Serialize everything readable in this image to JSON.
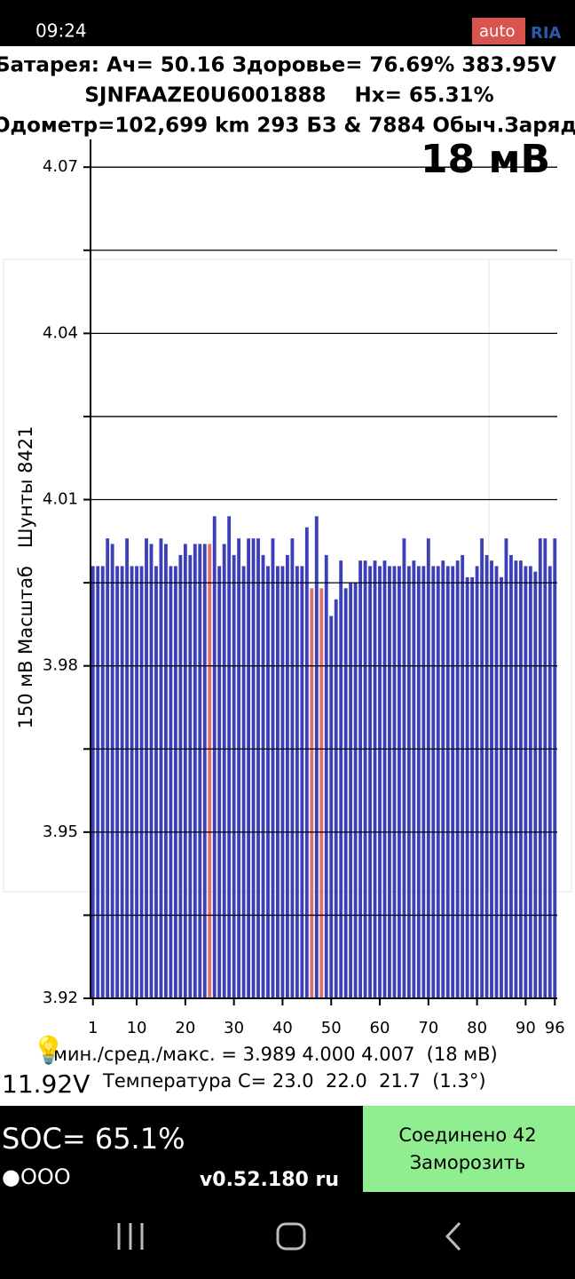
{
  "status_bar": {
    "time": "09:24",
    "watermark_1": "auto",
    "watermark_2": "RIA"
  },
  "header": {
    "line1": "Батарея: Ач= 50.16 Здоровье= 76.69% 383.95V",
    "line2": "SJNFAAZE0U6001888    Hx= 65.31%",
    "line3": "Одометр=102,699 km 293 БЗ & 7884 Обыч.Заряд"
  },
  "chart_data": {
    "type": "bar",
    "title": "18 мВ",
    "ylabel": "150 мВ Масштаб   Шунты 8421",
    "x": [
      1,
      2,
      3,
      4,
      5,
      6,
      7,
      8,
      9,
      10,
      11,
      12,
      13,
      14,
      15,
      16,
      17,
      18,
      19,
      20,
      21,
      22,
      23,
      24,
      25,
      26,
      27,
      28,
      29,
      30,
      31,
      32,
      33,
      34,
      35,
      36,
      37,
      38,
      39,
      40,
      41,
      42,
      43,
      44,
      45,
      46,
      47,
      48,
      49,
      50,
      51,
      52,
      53,
      54,
      55,
      56,
      57,
      58,
      59,
      60,
      61,
      62,
      63,
      64,
      65,
      66,
      67,
      68,
      69,
      70,
      71,
      72,
      73,
      74,
      75,
      76,
      77,
      78,
      79,
      80,
      81,
      82,
      83,
      84,
      85,
      86,
      87,
      88,
      89,
      90,
      91,
      92,
      93,
      94,
      95,
      96
    ],
    "values": [
      3.998,
      3.998,
      3.998,
      4.003,
      4.002,
      3.998,
      3.998,
      4.003,
      3.998,
      3.998,
      3.998,
      4.003,
      4.002,
      3.998,
      4.003,
      4.002,
      3.998,
      3.998,
      4.0,
      4.002,
      4.0,
      4.002,
      4.002,
      4.002,
      4.002,
      4.007,
      3.998,
      4.002,
      4.007,
      4.0,
      4.003,
      3.998,
      4.003,
      4.003,
      4.003,
      4.0,
      3.998,
      4.003,
      3.998,
      3.998,
      4.0,
      4.003,
      3.998,
      3.998,
      4.005,
      3.994,
      4.007,
      3.994,
      4.0,
      3.989,
      3.992,
      3.999,
      3.994,
      3.995,
      3.995,
      3.999,
      3.999,
      3.998,
      3.999,
      3.998,
      3.999,
      3.998,
      3.998,
      3.998,
      4.003,
      3.998,
      3.999,
      3.998,
      3.998,
      4.003,
      3.998,
      3.998,
      3.999,
      3.998,
      3.998,
      3.999,
      4.0,
      3.996,
      3.996,
      3.998,
      4.003,
      4.0,
      3.999,
      3.998,
      3.996,
      4.003,
      4.0,
      3.999,
      3.999,
      3.998,
      3.998,
      3.997,
      4.003,
      4.003,
      3.998,
      4.003
    ],
    "color": "#3b3fb8",
    "highlight": {
      "color": "#e07070",
      "x": [
        25,
        46,
        48
      ]
    },
    "xlim": [
      0.5,
      96.5
    ],
    "xticks": [
      1,
      10,
      20,
      30,
      40,
      50,
      60,
      70,
      80,
      90,
      96
    ],
    "ylim": [
      3.92,
      4.075
    ],
    "yticks": [
      3.92,
      3.95,
      3.98,
      4.01,
      4.04,
      4.07
    ],
    "grid_lines": [
      3.92,
      3.935,
      3.95,
      3.965,
      3.98,
      3.995,
      4.01,
      4.025,
      4.04,
      4.055,
      4.07
    ]
  },
  "summary": {
    "minmax": "мин./сред./макс. = 3.989 4.000 4.007  (18 мВ)",
    "voltage": "11.92V",
    "temperature": "Температура C= 23.0  22.0  21.7  (1.3°)"
  },
  "footer": {
    "soc": "SOC= 65.1%",
    "dots": "●OOO",
    "version": "v0.52.180 ru",
    "button_line1": "Соединено 42",
    "button_line2": "Заморозить"
  }
}
